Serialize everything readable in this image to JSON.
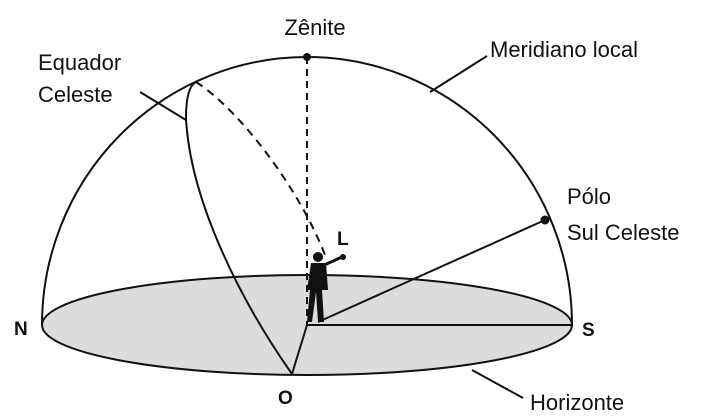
{
  "labels": {
    "zenith": "Zênite",
    "meridian": "Meridiano local",
    "equator": [
      "Equador",
      "Celeste"
    ],
    "pole": [
      "Pólo",
      "Sul Celeste"
    ],
    "observer": "L",
    "north": "N",
    "south": "S",
    "west": "O",
    "horizon": "Horizonte"
  }
}
